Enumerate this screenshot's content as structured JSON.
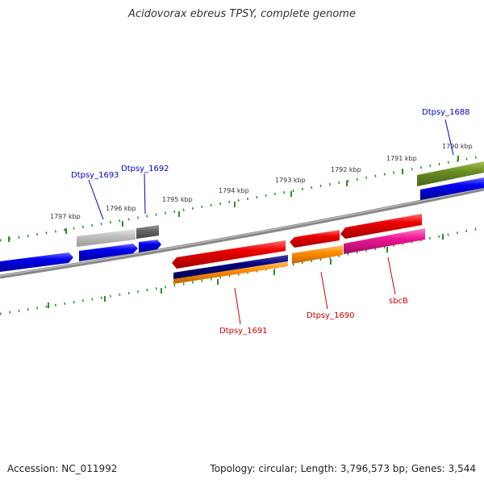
{
  "title": "Acidovorax ebreus TPSY, complete genome",
  "footer": {
    "accession": "Accession: NC_011992",
    "summary": "Topology: circular; Length: 3,796,573 bp; Genes: 3,544"
  },
  "colors": {
    "backbone": "#888888",
    "tick_marks": "#2e8b2e",
    "forward_label": "#0000cc",
    "reverse_label": "#cc0000"
  },
  "scale_labels": [
    "1797 kbp",
    "1796 kbp",
    "1795 kbp",
    "1794 kbp",
    "1793 kbp",
    "1792 kbp",
    "1791 kbp",
    "1790 kbp"
  ],
  "gene_labels": {
    "dtpsy_1693": "Dtpsy_1693",
    "dtpsy_1692": "Dtpsy_1692",
    "dtpsy_1688": "Dtpsy_1688",
    "dtpsy_1691": "Dtpsy_1691",
    "dtpsy_1690": "Dtpsy_1690",
    "sbcb": "sbcB"
  },
  "features": [
    {
      "id": "fwd-gene-1",
      "strand": "forward",
      "color": "#0000ee"
    },
    {
      "id": "fwd-gene-2",
      "strand": "forward",
      "color": "#0000ee"
    },
    {
      "id": "fwd-gene-3",
      "strand": "forward",
      "color": "#0000ee"
    },
    {
      "id": "fwd-gene-4",
      "strand": "forward",
      "color": "#0000ee"
    },
    {
      "id": "fwd-cds-1693",
      "strand": "forward",
      "color": "#c0c0c0"
    },
    {
      "id": "fwd-cds-1692",
      "strand": "forward",
      "color": "#666666"
    },
    {
      "id": "fwd-cds-1688",
      "strand": "forward",
      "color": "#6b8e23"
    },
    {
      "id": "rev-gene-1691",
      "strand": "reverse",
      "color": "#ee0000"
    },
    {
      "id": "rev-gene-2",
      "strand": "reverse",
      "color": "#ee0000"
    },
    {
      "id": "rev-gene-3",
      "strand": "reverse",
      "color": "#ee0000"
    },
    {
      "id": "rev-cds-1691",
      "strand": "reverse",
      "color": "#00007f"
    },
    {
      "id": "rev-cds-1691b",
      "strand": "reverse",
      "color": "#ff8c00"
    },
    {
      "id": "rev-cds-1690",
      "strand": "reverse",
      "color": "#ff8c00"
    },
    {
      "id": "rev-cds-sbcb",
      "strand": "reverse",
      "color": "#ee1493"
    }
  ]
}
